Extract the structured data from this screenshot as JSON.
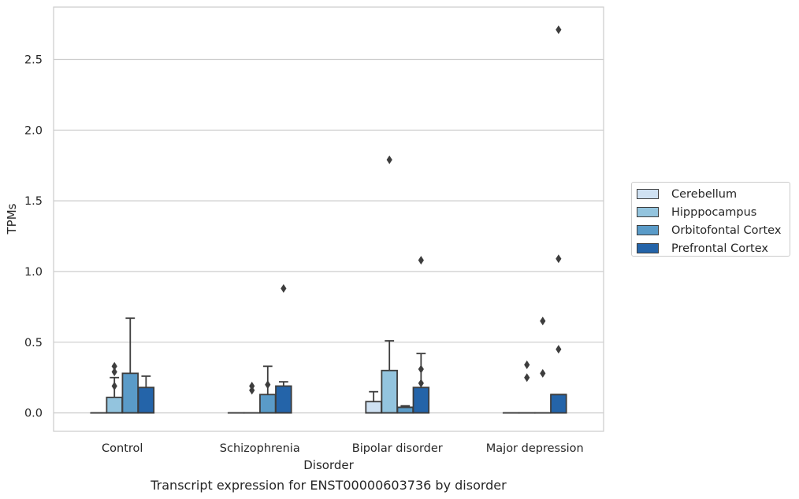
{
  "chart_data": {
    "type": "box",
    "title": "Transcript expression for ENST00000603736 by disorder",
    "xlabel": "Disorder",
    "ylabel": "TPMs",
    "ylim": [
      -0.13,
      2.87
    ],
    "yticks": [
      "0.0",
      "0.5",
      "1.0",
      "1.5",
      "2.0",
      "2.5"
    ],
    "grid": true,
    "legend_position": "right",
    "categories": [
      "Control",
      "Schizophrenia",
      "Bipolar disorder",
      "Major depression"
    ],
    "series": [
      {
        "name": "Cerebellum",
        "color": "#cfe1f2",
        "boxes": [
          {
            "q1": 0.0,
            "median": 0.0,
            "q3": 0.0,
            "whisker_low": 0.0,
            "whisker_high": 0.0,
            "outliers": []
          },
          {
            "q1": 0.0,
            "median": 0.0,
            "q3": 0.0,
            "whisker_low": 0.0,
            "whisker_high": 0.0,
            "outliers": []
          },
          {
            "q1": 0.0,
            "median": 0.0,
            "q3": 0.08,
            "whisker_low": 0.0,
            "whisker_high": 0.15,
            "outliers": []
          },
          {
            "q1": 0.0,
            "median": 0.0,
            "q3": 0.0,
            "whisker_low": 0.0,
            "whisker_high": 0.0,
            "outliers": []
          }
        ]
      },
      {
        "name": "Hipppocampus",
        "color": "#93c4de",
        "boxes": [
          {
            "q1": 0.0,
            "median": 0.0,
            "q3": 0.11,
            "whisker_low": 0.0,
            "whisker_high": 0.25,
            "outliers": [
              0.19,
              0.29,
              0.33
            ]
          },
          {
            "q1": 0.0,
            "median": 0.0,
            "q3": 0.0,
            "whisker_low": 0.0,
            "whisker_high": 0.0,
            "outliers": [
              0.16,
              0.19
            ]
          },
          {
            "q1": 0.0,
            "median": 0.0,
            "q3": 0.3,
            "whisker_low": 0.0,
            "whisker_high": 0.51,
            "outliers": [
              1.79
            ]
          },
          {
            "q1": 0.0,
            "median": 0.0,
            "q3": 0.0,
            "whisker_low": 0.0,
            "whisker_high": 0.0,
            "outliers": [
              0.25,
              0.34
            ]
          }
        ]
      },
      {
        "name": "Orbitofontal Cortex",
        "color": "#5a9bc8",
        "boxes": [
          {
            "q1": 0.0,
            "median": 0.0,
            "q3": 0.28,
            "whisker_low": 0.0,
            "whisker_high": 0.67,
            "outliers": []
          },
          {
            "q1": 0.0,
            "median": 0.0,
            "q3": 0.13,
            "whisker_low": 0.0,
            "whisker_high": 0.33,
            "outliers": [
              0.2
            ]
          },
          {
            "q1": 0.0,
            "median": 0.04,
            "q3": 0.04,
            "whisker_low": 0.0,
            "whisker_high": 0.05,
            "outliers": []
          },
          {
            "q1": 0.0,
            "median": 0.0,
            "q3": 0.0,
            "whisker_low": 0.0,
            "whisker_high": 0.0,
            "outliers": [
              0.28,
              0.65
            ]
          }
        ]
      },
      {
        "name": "Prefrontal Cortex",
        "color": "#2464a9",
        "boxes": [
          {
            "q1": 0.0,
            "median": 0.0,
            "q3": 0.18,
            "whisker_low": 0.0,
            "whisker_high": 0.26,
            "outliers": []
          },
          {
            "q1": 0.0,
            "median": 0.0,
            "q3": 0.19,
            "whisker_low": 0.0,
            "whisker_high": 0.22,
            "outliers": [
              0.88
            ]
          },
          {
            "q1": 0.0,
            "median": 0.0,
            "q3": 0.18,
            "whisker_low": 0.0,
            "whisker_high": 0.42,
            "outliers": [
              0.21,
              0.31,
              1.08
            ]
          },
          {
            "q1": 0.0,
            "median": 0.13,
            "q3": 0.13,
            "whisker_low": 0.0,
            "whisker_high": 0.13,
            "outliers": [
              0.45,
              1.09,
              2.71
            ]
          }
        ]
      }
    ]
  }
}
